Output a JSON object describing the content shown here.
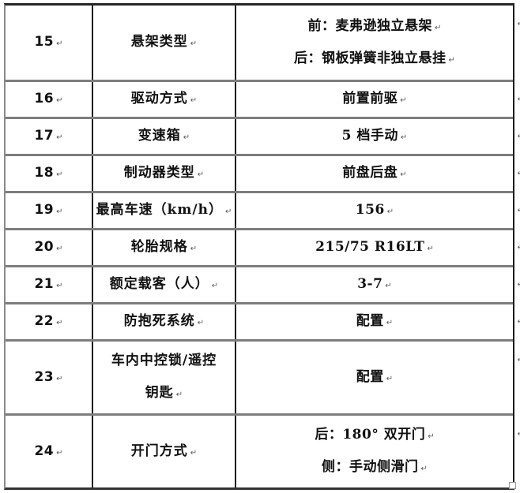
{
  "document": {
    "background": "#ffffff",
    "text_color": "#111111",
    "formatting_mark": "↵",
    "border_colors": {
      "vertical": "#1c1c1c",
      "horizontal": "#7d7d7d",
      "outer_left": "#8a8a8a"
    }
  },
  "table": {
    "rows": [
      {
        "num": "15",
        "label_lines": [
          "悬架类型"
        ],
        "value_lines": [
          "前：麦弗逊独立悬架",
          "后：钢板弹簧非独立悬挂"
        ]
      },
      {
        "num": "16",
        "label_lines": [
          "驱动方式"
        ],
        "value_lines": [
          "前置前驱"
        ]
      },
      {
        "num": "17",
        "label_lines": [
          "变速箱"
        ],
        "value_lines": [
          "5 档手动"
        ]
      },
      {
        "num": "18",
        "label_lines": [
          "制动器类型"
        ],
        "value_lines": [
          "前盘后盘"
        ]
      },
      {
        "num": "19",
        "label_lines": [
          "最高车速（km/h）"
        ],
        "value_lines": [
          "156"
        ]
      },
      {
        "num": "20",
        "label_lines": [
          "轮胎规格"
        ],
        "value_lines": [
          "215/75 R16LT"
        ]
      },
      {
        "num": "21",
        "label_lines": [
          "额定载客（人）"
        ],
        "value_lines": [
          "3-7"
        ]
      },
      {
        "num": "22",
        "label_lines": [
          "防抱死系统"
        ],
        "value_lines": [
          "配置"
        ]
      },
      {
        "num": "23",
        "label_lines": [
          "车内中控锁/遥控",
          "钥匙"
        ],
        "value_lines": [
          "配置"
        ]
      },
      {
        "num": "24",
        "label_lines": [
          "开门方式"
        ],
        "value_lines": [
          "后：180° 双开门",
          "侧：手动侧滑门"
        ]
      }
    ]
  }
}
